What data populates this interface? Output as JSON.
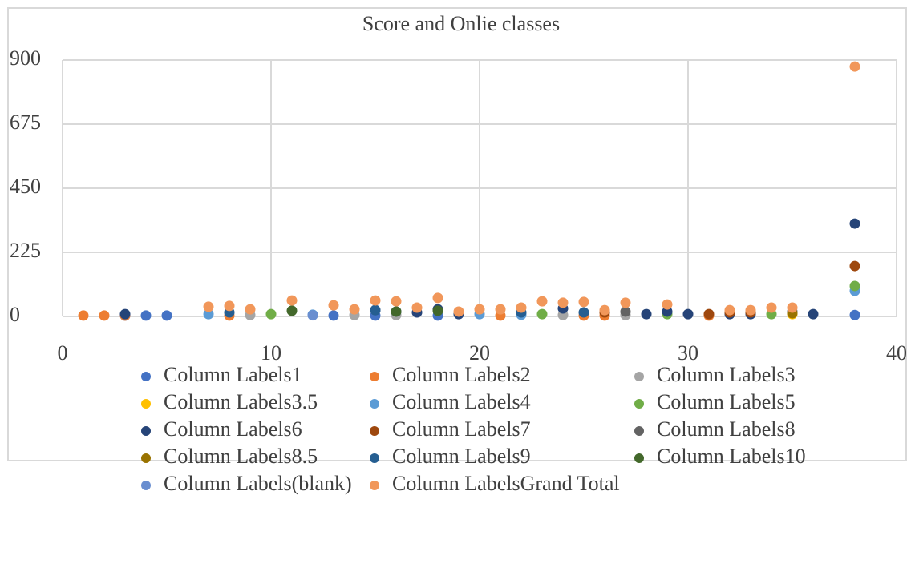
{
  "chart_data": {
    "type": "scatter",
    "title": "Score and Onlie classes",
    "xlim": [
      0,
      40
    ],
    "xticks": [
      0,
      10,
      20,
      30,
      40
    ],
    "ylim": [
      0,
      900
    ],
    "yticks": [
      0,
      225,
      450,
      675,
      900
    ],
    "grid": true,
    "legend": "bottom",
    "series": [
      {
        "name": "Column Labels1",
        "color": "#4472c4",
        "x": [
          3,
          4,
          5,
          13,
          15,
          18,
          38
        ],
        "values": [
          3,
          3,
          3,
          3,
          3,
          3,
          5
        ]
      },
      {
        "name": "Column Labels2",
        "color": "#ed7d31",
        "x": [
          1,
          2,
          3,
          8,
          21,
          25,
          26,
          31
        ],
        "values": [
          3,
          3,
          3,
          3,
          3,
          3,
          3,
          3
        ]
      },
      {
        "name": "Column Labels3",
        "color": "#a5a5a5",
        "x": [
          9,
          14,
          16,
          24,
          27
        ],
        "values": [
          5,
          5,
          5,
          5,
          5
        ]
      },
      {
        "name": "Column Labels3.5",
        "color": "#ffc000",
        "x": [
          35
        ],
        "values": [
          8
        ]
      },
      {
        "name": "Column Labels4",
        "color": "#5b9bd5",
        "x": [
          7,
          12,
          20,
          22,
          38
        ],
        "values": [
          8,
          6,
          8,
          6,
          90
        ]
      },
      {
        "name": "Column Labels5",
        "color": "#70ad47",
        "x": [
          10,
          23,
          29,
          34,
          38
        ],
        "values": [
          8,
          8,
          8,
          8,
          107
        ]
      },
      {
        "name": "Column Labels6",
        "color": "#264478",
        "x": [
          3,
          15,
          17,
          18,
          19,
          24,
          28,
          29,
          30,
          32,
          33,
          36,
          38
        ],
        "values": [
          8,
          22,
          14,
          25,
          8,
          28,
          8,
          17,
          8,
          8,
          8,
          8,
          326
        ]
      },
      {
        "name": "Column Labels7",
        "color": "#9e480e",
        "x": [
          26,
          31,
          32,
          33,
          38
        ],
        "values": [
          14,
          8,
          14,
          14,
          177
        ]
      },
      {
        "name": "Column Labels8",
        "color": "#636363",
        "x": [
          27,
          35
        ],
        "values": [
          17,
          17
        ]
      },
      {
        "name": "Column Labels8.5",
        "color": "#997300",
        "x": [
          35
        ],
        "values": [
          11
        ]
      },
      {
        "name": "Column Labels9",
        "color": "#255e91",
        "x": [
          8,
          15,
          16,
          22,
          25
        ],
        "values": [
          14,
          22,
          17,
          14,
          14
        ]
      },
      {
        "name": "Column Labels10",
        "color": "#43682b",
        "x": [
          11,
          16,
          18
        ],
        "values": [
          20,
          17,
          20
        ]
      },
      {
        "name": "Column Labels(blank)",
        "color": "#698ed0",
        "x": [
          12
        ],
        "values": [
          4
        ]
      },
      {
        "name": "Column LabelsGrand Total",
        "color": "#f1975a",
        "x": [
          7,
          8,
          9,
          11,
          13,
          14,
          15,
          16,
          17,
          18,
          19,
          20,
          21,
          22,
          23,
          24,
          25,
          26,
          27,
          29,
          32,
          33,
          34,
          35,
          38
        ],
        "values": [
          34,
          37,
          25,
          56,
          39,
          25,
          56,
          53,
          31,
          65,
          17,
          25,
          25,
          31,
          53,
          48,
          51,
          22,
          48,
          42,
          22,
          22,
          31,
          31,
          877
        ]
      }
    ]
  }
}
